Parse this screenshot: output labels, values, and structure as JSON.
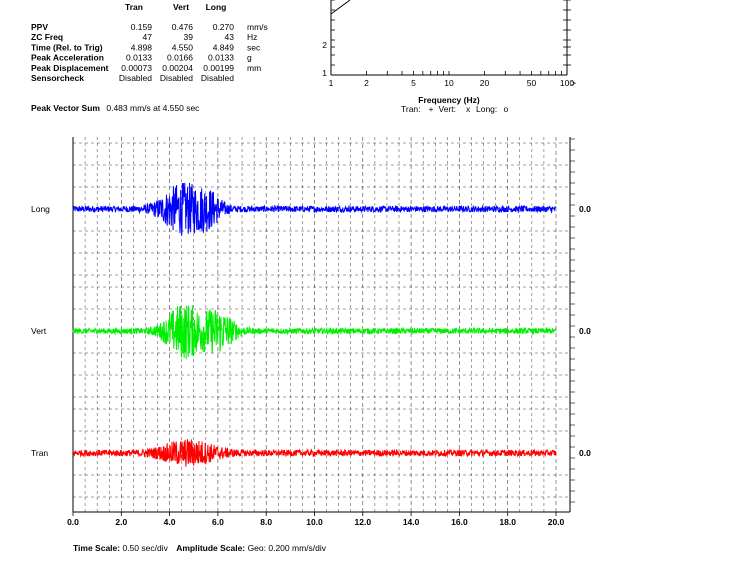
{
  "summary_table": {
    "columns": [
      "Tran",
      "Vert",
      "Long"
    ],
    "rows": [
      {
        "label": "PPV",
        "values": [
          "0.159",
          "0.476",
          "0.270"
        ],
        "unit": "mm/s"
      },
      {
        "label": "ZC Freq",
        "values": [
          "47",
          "39",
          "43"
        ],
        "unit": "Hz"
      },
      {
        "label": "Time (Rel. to Trig)",
        "values": [
          "4.898",
          "4.550",
          "4.849"
        ],
        "unit": "sec"
      },
      {
        "label": "Peak Acceleration",
        "values": [
          "0.0133",
          "0.0166",
          "0.0133"
        ],
        "unit": "g"
      },
      {
        "label": "Peak Displacement",
        "values": [
          "0.00073",
          "0.00204",
          "0.00199"
        ],
        "unit": "mm"
      },
      {
        "label": "Sensorcheck",
        "values": [
          "Disabled",
          "Disabled",
          "Disabled"
        ],
        "unit": ""
      }
    ]
  },
  "peak_vector_sum": {
    "label": "Peak Vector Sum",
    "text": "0.483 mm/s at 4.550 sec"
  },
  "chart_data": [
    {
      "type": "scatter",
      "xlabel": "Frequency (Hz)",
      "x_scale": "log",
      "xlim": [
        1,
        100
      ],
      "x_tick_labels": [
        "1",
        "2",
        "5",
        "10",
        "20",
        "50",
        "100"
      ],
      "y_tick_labels": [
        "1",
        "2"
      ],
      "axis_arrow_label": ">",
      "legend": {
        "prefix": "Tran:",
        "entries": [
          {
            "name": "Tran",
            "label": "Tran:",
            "marker": "+",
            "color": "#ff0000"
          },
          {
            "name": "Vert",
            "label": "Vert:",
            "marker": "x",
            "color": "#00c800"
          },
          {
            "name": "Long",
            "label": "Long:",
            "marker": "o",
            "color": "#0000ff"
          }
        ]
      }
    },
    {
      "type": "line",
      "xlim": [
        0,
        20
      ],
      "x_ticks": [
        0,
        2,
        4,
        6,
        8,
        10,
        12,
        14,
        16,
        18,
        20
      ],
      "x_tick_labels": [
        "0.0",
        "2.0",
        "4.0",
        "6.0",
        "8.0",
        "10.0",
        "12.0",
        "14.0",
        "16.0",
        "18.0",
        "20.0"
      ],
      "series": [
        {
          "name": "Long",
          "color": "#0000ff",
          "baseline_label": "0.0",
          "burst": [
            {
              "t": 4.5,
              "width": 0.9,
              "amp": 0.9
            },
            {
              "t": 5.6,
              "width": 0.6,
              "amp": 0.55
            }
          ],
          "noise": 0.12
        },
        {
          "name": "Vert",
          "color": "#00ee00",
          "baseline_label": "0.0",
          "burst": [
            {
              "t": 4.6,
              "width": 0.8,
              "amp": 1.0
            },
            {
              "t": 6.0,
              "width": 0.7,
              "amp": 0.75
            }
          ],
          "noise": 0.11
        },
        {
          "name": "Tran",
          "color": "#ff0000",
          "baseline_label": "0.0",
          "burst": [
            {
              "t": 4.8,
              "width": 1.2,
              "amp": 0.45
            }
          ],
          "noise": 0.12
        }
      ]
    }
  ],
  "footer": {
    "time_scale_label": "Time Scale:",
    "time_scale_value": "0.50 sec/div",
    "amplitude_scale_label": "Amplitude Scale:",
    "amplitude_scale_value": "Geo: 0.200 mm/s/div"
  }
}
